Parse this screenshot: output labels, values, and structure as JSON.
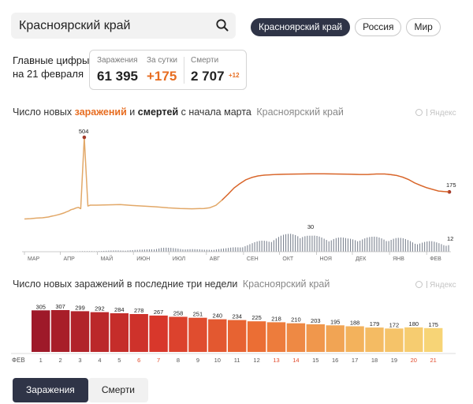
{
  "search": {
    "value": "Красноярский край"
  },
  "region_tabs": [
    "Красноярский край",
    "Россия",
    "Мир"
  ],
  "summary": {
    "caption_line1": "Главные цифры",
    "caption_line2": "на 21 февраля",
    "infected_label": "Заражения",
    "infected_value": "61 395",
    "daily_label": "За сутки",
    "daily_value": "+175",
    "deaths_label": "Смерти",
    "deaths_value": "2 707",
    "deaths_delta": "+12"
  },
  "main_chart": {
    "title_prefix": "Число новых",
    "title_infections": "заражений",
    "title_mid": "и",
    "title_deaths": "смертей",
    "title_suffix": "с начала марта",
    "region": "Красноярский край"
  },
  "watermark": "Яндекс",
  "bars_chart": {
    "title": "Число новых заражений в последние три недели",
    "region": "Красноярский край",
    "month_label": "ФЕВ"
  },
  "metric_tabs": [
    "Заражения",
    "Смерти"
  ],
  "colors": {
    "accent_dark": "#2f3447",
    "orange": "#e76d21",
    "infection_line": "#e2a868",
    "deaths_bars": "#7e8592"
  },
  "chart_data": [
    {
      "type": "line",
      "title": "Число новых заражений и смертей с начала марта",
      "series": [
        {
          "name": "Заражения",
          "x": [
            1,
            6,
            11,
            16,
            21,
            24,
            26,
            29,
            31,
            34,
            36,
            38,
            40,
            42,
            44,
            46,
            48,
            51,
            54,
            56,
            61,
            71,
            81,
            91,
            101,
            111,
            121,
            131,
            141,
            151,
            156,
            161,
            166,
            171,
            176,
            181,
            186,
            191,
            196,
            201,
            211,
            221,
            231,
            241,
            251,
            261,
            271,
            281,
            288,
            295,
            302,
            307,
            312,
            317,
            322,
            327,
            332,
            337,
            342,
            347,
            352,
            356
          ],
          "values": [
            12,
            14,
            17,
            19,
            24,
            29,
            32,
            37,
            41,
            48,
            54,
            60,
            68,
            72,
            78,
            82,
            74,
            504,
            90,
            95,
            95,
            97,
            99,
            93,
            89,
            85,
            79,
            75,
            73,
            75,
            80,
            94,
            125,
            160,
            198,
            225,
            248,
            262,
            271,
            276,
            280,
            282,
            283,
            284,
            284,
            283,
            282,
            280,
            280,
            283,
            283,
            279,
            274,
            264,
            249,
            229,
            214,
            200,
            190,
            180,
            177,
            175
          ]
        },
        {
          "name": "Смерти",
          "x": [
            1,
            20,
            60,
            80,
            100,
            115,
            130,
            150,
            170,
            180,
            190,
            200,
            210,
            220,
            230,
            240,
            250,
            260,
            270,
            280,
            290,
            300,
            310,
            320,
            330,
            340,
            350,
            356
          ],
          "values": [
            0,
            0,
            1,
            2,
            3,
            6,
            5,
            3,
            5,
            8,
            12,
            17,
            22,
            25,
            30,
            23,
            22,
            22,
            19,
            22,
            21,
            22,
            21,
            18,
            15,
            15,
            13,
            12
          ]
        }
      ],
      "x_tick_labels": [
        "МАР",
        "АПР",
        "МАЙ",
        "ИЮН",
        "ИЮЛ",
        "АВГ",
        "СЕН",
        "ОКТ",
        "НОЯ",
        "ДЕК",
        "ЯНВ",
        "ФЕВ"
      ],
      "x_tick_days": [
        1,
        31,
        62,
        92,
        122,
        153,
        184,
        214,
        245,
        275,
        306,
        337
      ],
      "annotations": [
        {
          "series": "Заражения",
          "x": 51,
          "value": 504
        },
        {
          "series": "Заражения",
          "x": 356,
          "value": 175
        },
        {
          "series": "Смерти",
          "x": 240,
          "value": 30
        },
        {
          "series": "Смерти",
          "x": 356,
          "value": 12
        }
      ]
    },
    {
      "type": "bar",
      "title": "Число новых заражений в последние три недели",
      "categories": [
        "1",
        "2",
        "3",
        "4",
        "5",
        "6",
        "7",
        "8",
        "9",
        "10",
        "11",
        "12",
        "13",
        "14",
        "15",
        "16",
        "17",
        "18",
        "19",
        "20",
        "21"
      ],
      "values": [
        305,
        307,
        299,
        292,
        284,
        278,
        267,
        258,
        251,
        240,
        234,
        225,
        218,
        210,
        203,
        195,
        188,
        179,
        172,
        180,
        175
      ],
      "weekend_days": [
        "6",
        "7",
        "13",
        "14",
        "20",
        "21"
      ],
      "xlabel": "ФЕВ",
      "ylim": [
        0,
        307
      ]
    }
  ]
}
